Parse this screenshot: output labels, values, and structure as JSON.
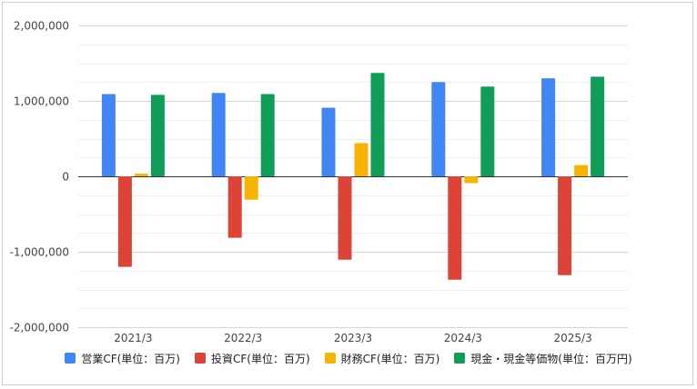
{
  "chart_data": {
    "type": "bar",
    "categories": [
      "2021/3",
      "2022/3",
      "2023/3",
      "2024/3",
      "2025/3"
    ],
    "series": [
      {
        "name": "営業CF(単位：百万)",
        "color": "#4285F4",
        "values": [
          1090000,
          1105000,
          910000,
          1250000,
          1300000
        ]
      },
      {
        "name": "投資CF(単位：百万)",
        "color": "#DB4437",
        "values": [
          -1200000,
          -815000,
          -1105000,
          -1370000,
          -1310000
        ]
      },
      {
        "name": "財務CF(単位：百万)",
        "color": "#F4B400",
        "values": [
          35000,
          -310000,
          440000,
          -90000,
          150000
        ]
      },
      {
        "name": "現金・現金等価物(単位：百万円)",
        "color": "#0F9D58",
        "values": [
          1080000,
          1090000,
          1370000,
          1190000,
          1320000
        ]
      }
    ],
    "ylim": [
      -2000000,
      2000000
    ],
    "yticks": [
      "2,000,000",
      "1,000,000",
      "0",
      "-1,000,000",
      "-2,000,000"
    ],
    "ytick_values": [
      2000000,
      1000000,
      0,
      -1000000,
      -2000000
    ],
    "grid": true,
    "legend_position": "bottom"
  }
}
